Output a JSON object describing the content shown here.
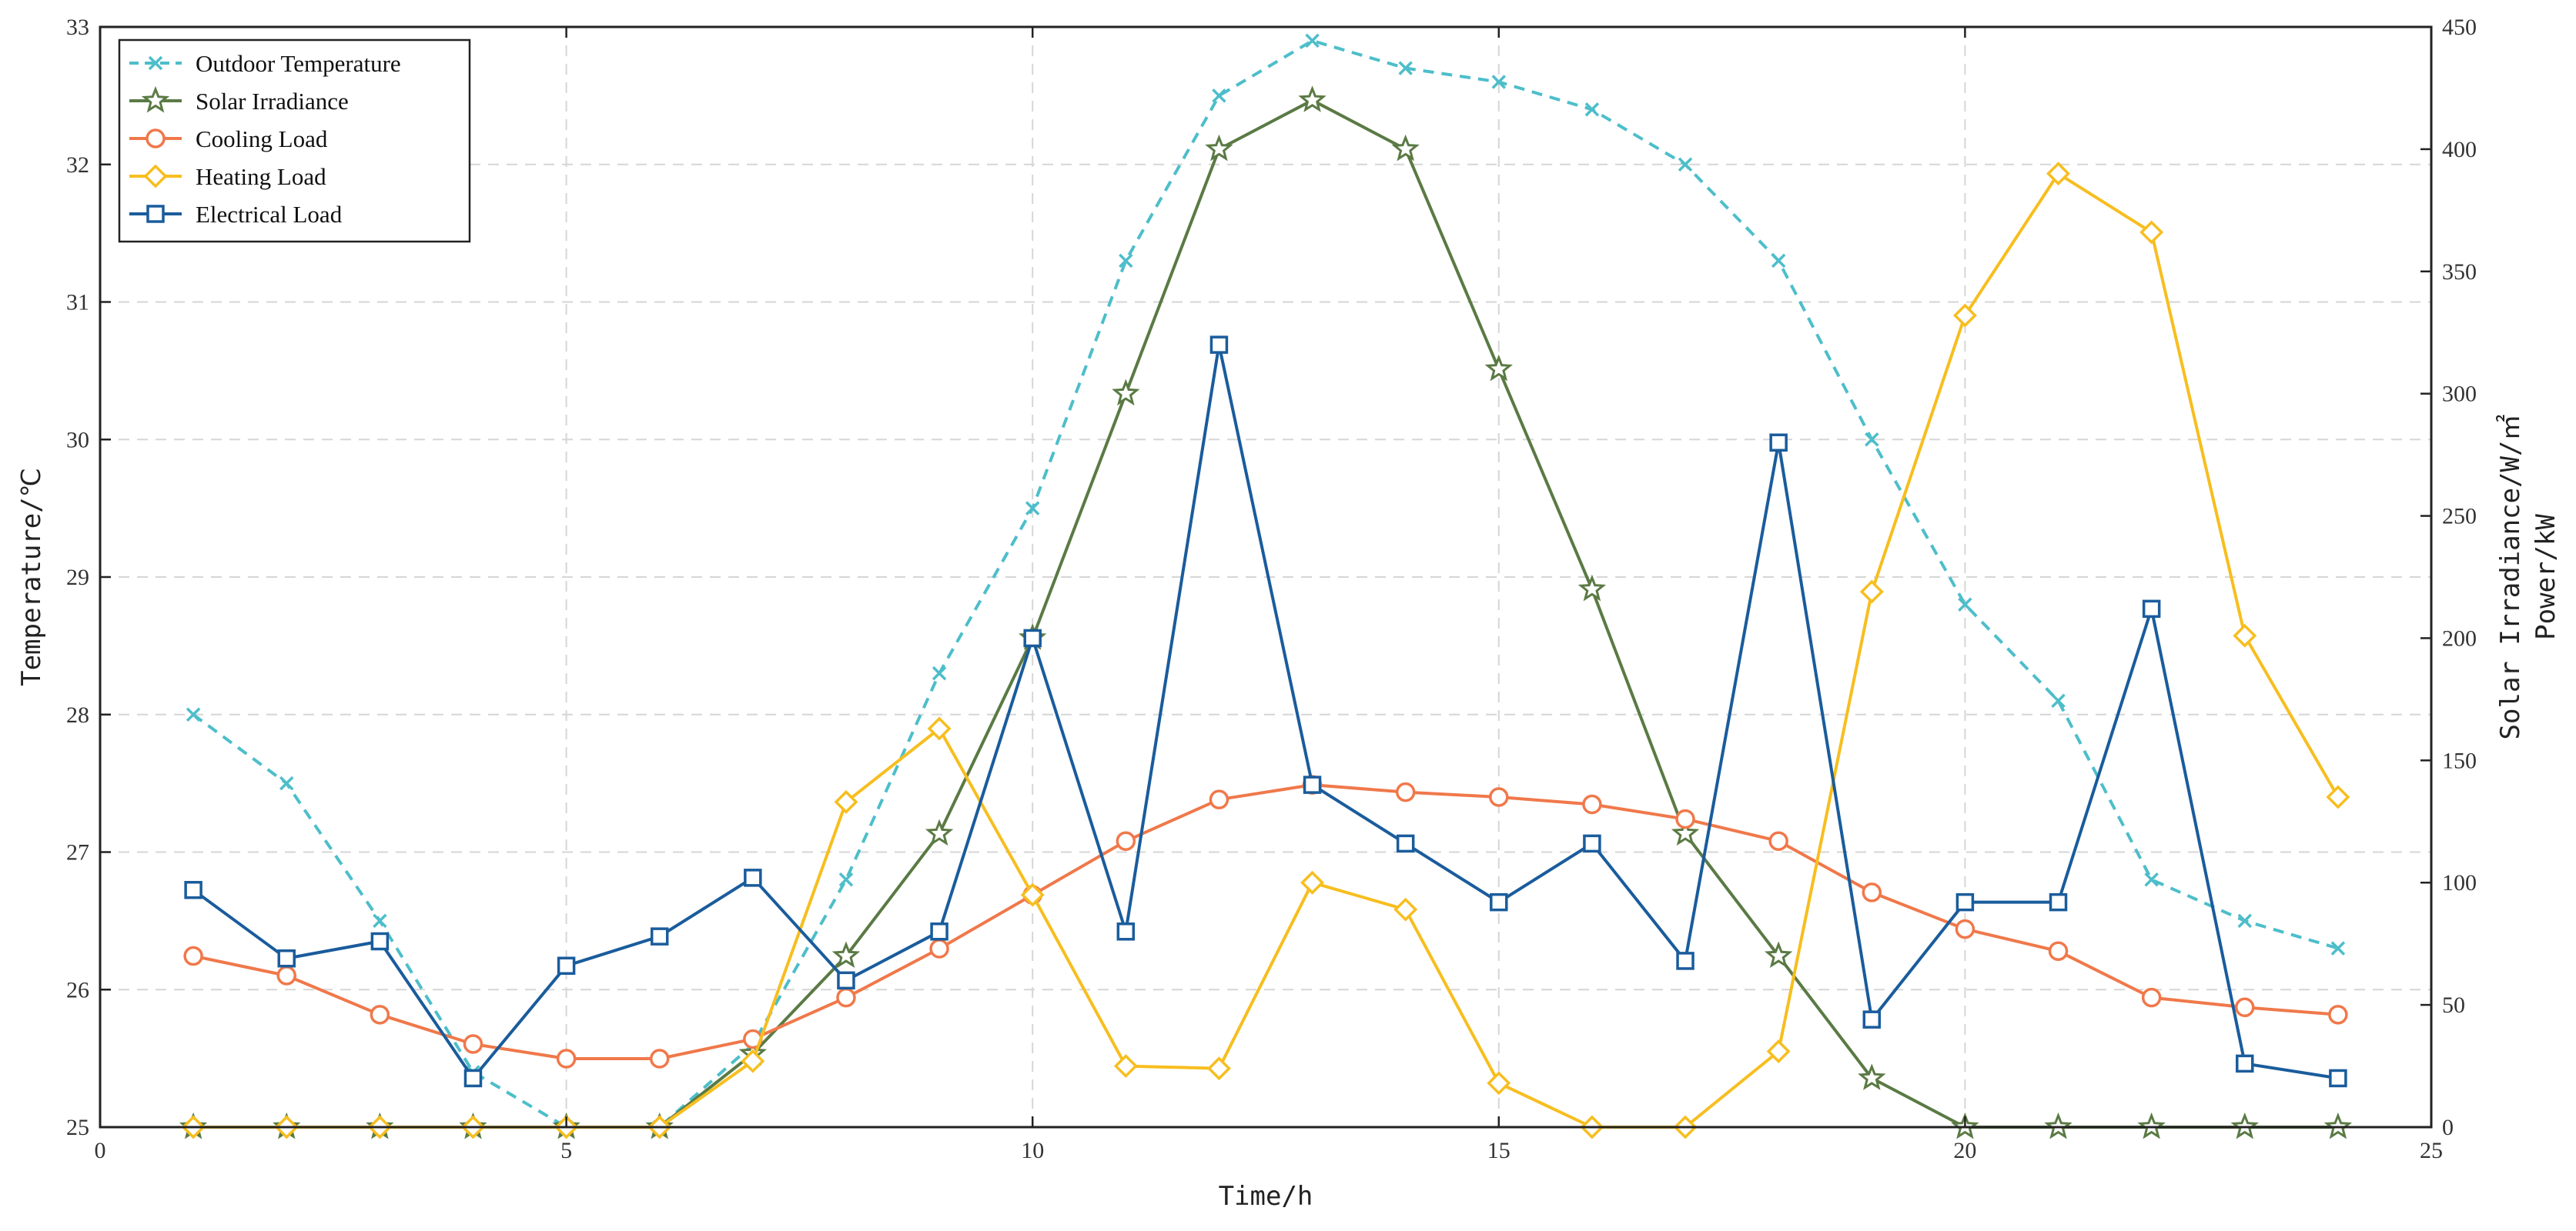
{
  "chart_data": {
    "type": "line",
    "x": [
      1,
      2,
      3,
      4,
      5,
      6,
      7,
      8,
      9,
      10,
      11,
      12,
      13,
      14,
      15,
      16,
      17,
      18,
      19,
      20,
      21,
      22,
      23,
      24
    ],
    "xlabel": "Time/h",
    "xlim": [
      0,
      25
    ],
    "xticks": [
      0,
      5,
      10,
      15,
      20,
      25
    ],
    "ylabel_left": "Temperature/℃",
    "ylim_left": [
      25,
      33
    ],
    "yticks_left": [
      25,
      26,
      27,
      28,
      29,
      30,
      31,
      32,
      33
    ],
    "ylabel_right_1": "Solar Irradiance/W/㎡",
    "ylabel_right_2": "Power/kW",
    "ylim_right": [
      0,
      450
    ],
    "yticks_right": [
      0,
      50,
      100,
      150,
      200,
      250,
      300,
      350,
      400,
      450
    ],
    "grid": true,
    "legend_position": "top-left",
    "series": [
      {
        "name": "Outdoor Temperature",
        "axis": "left",
        "color": "#4dbeca",
        "marker": "x",
        "dashed": true,
        "values": [
          28.0,
          27.5,
          26.5,
          25.4,
          25.0,
          25.0,
          25.6,
          26.8,
          28.3,
          29.5,
          31.3,
          32.5,
          32.9,
          32.7,
          32.6,
          32.4,
          32.0,
          31.3,
          30.0,
          28.8,
          28.1,
          26.8,
          26.5,
          26.3
        ]
      },
      {
        "name": "Solar Irradiance",
        "axis": "right",
        "color": "#5a7a44",
        "marker": "star",
        "dashed": false,
        "values": [
          0,
          0,
          0,
          0,
          0,
          0,
          30,
          70,
          120,
          200,
          300,
          400,
          420,
          400,
          310,
          220,
          120,
          70,
          20,
          0,
          0,
          0,
          0,
          0
        ]
      },
      {
        "name": "Cooling Load",
        "axis": "right",
        "color": "#f0784a",
        "marker": "circle",
        "dashed": false,
        "values": [
          70,
          62,
          46,
          34,
          28,
          28,
          36,
          53,
          73,
          95,
          117,
          134,
          140,
          137,
          135,
          132,
          126,
          117,
          96,
          81,
          72,
          53,
          49,
          46
        ]
      },
      {
        "name": "Heating Load",
        "axis": "right",
        "color": "#f7be1f",
        "marker": "diamond",
        "dashed": false,
        "values": [
          0,
          0,
          0,
          0,
          0,
          0,
          27,
          133,
          163,
          95,
          25,
          24,
          100,
          89,
          18,
          0,
          0,
          31,
          219,
          332,
          390,
          366,
          201,
          135
        ]
      },
      {
        "name": "Electrical Load",
        "axis": "right",
        "color": "#1a5c9c",
        "marker": "square",
        "dashed": false,
        "values": [
          97,
          69,
          76,
          20,
          66,
          78,
          102,
          60,
          80,
          200,
          80,
          320,
          140,
          116,
          92,
          116,
          68,
          280,
          44,
          92,
          92,
          212,
          26,
          20
        ]
      }
    ]
  }
}
